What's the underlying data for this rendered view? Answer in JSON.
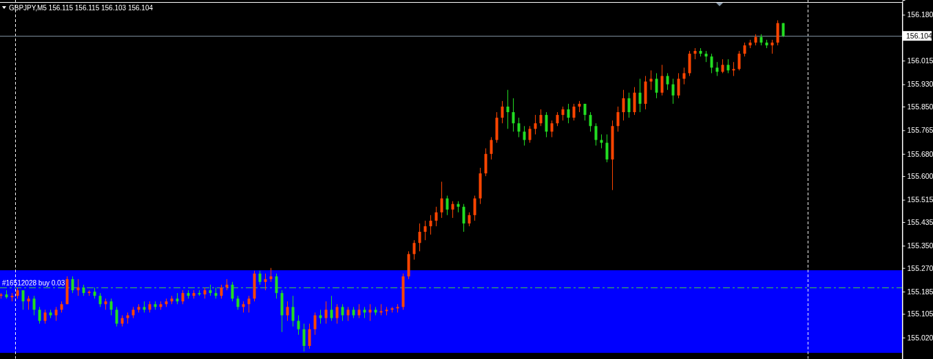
{
  "chart_data": {
    "type": "candlestick",
    "title": "GBPJPY,M5  156.115 156.115 156.103 156.104",
    "categories": [
      null,
      null,
      null,
      null,
      null,
      null,
      null,
      null,
      null,
      null,
      null,
      null,
      null,
      null,
      null,
      null,
      null,
      null,
      null,
      null,
      null,
      null,
      null,
      null,
      null,
      null,
      null,
      null,
      null,
      null,
      null,
      null,
      null,
      null,
      null,
      null,
      null,
      null,
      null,
      null,
      null,
      null,
      null,
      null,
      null,
      null,
      null,
      null,
      null,
      null,
      null,
      null,
      null,
      null,
      null,
      null,
      null,
      null,
      null,
      null,
      null,
      null,
      null,
      null,
      null,
      null,
      null,
      null,
      null,
      null,
      null,
      null,
      null,
      null,
      null,
      null,
      null,
      null,
      null,
      null,
      null,
      null,
      null,
      null,
      null,
      null,
      null,
      null,
      null,
      null,
      null,
      null,
      null,
      null,
      null,
      null,
      null,
      null,
      null,
      null,
      null,
      null,
      null,
      null,
      null,
      null,
      null,
      null,
      null,
      null,
      null,
      null,
      null,
      null,
      null,
      null,
      null,
      null,
      null,
      null,
      null,
      null,
      null,
      null,
      null,
      null,
      null,
      null,
      null,
      null,
      null,
      null,
      null,
      null,
      null,
      null,
      null,
      null,
      null,
      null,
      null,
      null,
      null,
      null,
      null,
      null,
      null,
      null,
      null,
      null,
      null,
      null,
      null,
      null,
      null,
      null,
      null,
      null,
      null,
      null,
      null,
      null,
      null,
      null
    ],
    "ohlc": [
      [
        155.17,
        155.18,
        155.16,
        155.175
      ],
      [
        155.175,
        155.19,
        155.16,
        155.165
      ],
      [
        155.165,
        155.18,
        155.15,
        155.17
      ],
      [
        155.17,
        155.2,
        155.16,
        155.19
      ],
      [
        155.19,
        155.19,
        155.12,
        155.15
      ],
      [
        155.15,
        155.17,
        155.12,
        155.16
      ],
      [
        155.16,
        155.17,
        155.1,
        155.12
      ],
      [
        155.12,
        155.13,
        155.07,
        155.08
      ],
      [
        155.08,
        155.12,
        155.07,
        155.11
      ],
      [
        155.11,
        155.12,
        155.09,
        155.1
      ],
      [
        155.1,
        155.13,
        155.08,
        155.12
      ],
      [
        155.12,
        155.15,
        155.11,
        155.14
      ],
      [
        155.14,
        155.24,
        155.14,
        155.23
      ],
      [
        155.23,
        155.24,
        155.18,
        155.19
      ],
      [
        155.19,
        155.23,
        155.17,
        155.2
      ],
      [
        155.2,
        155.21,
        155.17,
        155.18
      ],
      [
        155.18,
        155.19,
        155.17,
        155.185
      ],
      [
        155.185,
        155.2,
        155.16,
        155.17
      ],
      [
        155.17,
        155.18,
        155.13,
        155.14
      ],
      [
        155.14,
        155.16,
        155.12,
        155.15
      ],
      [
        155.15,
        155.16,
        155.1,
        155.12
      ],
      [
        155.12,
        155.13,
        155.06,
        155.07
      ],
      [
        155.07,
        155.1,
        155.06,
        155.09
      ],
      [
        155.09,
        155.11,
        155.07,
        155.1
      ],
      [
        155.1,
        155.13,
        155.09,
        155.12
      ],
      [
        155.12,
        155.14,
        155.11,
        155.13
      ],
      [
        155.13,
        155.15,
        155.11,
        155.12
      ],
      [
        155.12,
        155.15,
        155.11,
        155.14
      ],
      [
        155.14,
        155.15,
        155.12,
        155.13
      ],
      [
        155.13,
        155.15,
        155.12,
        155.14
      ],
      [
        155.14,
        155.16,
        155.13,
        155.15
      ],
      [
        155.15,
        155.17,
        155.14,
        155.16
      ],
      [
        155.16,
        155.18,
        155.14,
        155.15
      ],
      [
        155.15,
        155.19,
        155.14,
        155.18
      ],
      [
        155.18,
        155.19,
        155.16,
        155.17
      ],
      [
        155.17,
        155.19,
        155.16,
        155.18
      ],
      [
        155.18,
        155.19,
        155.17,
        155.175
      ],
      [
        155.175,
        155.2,
        155.16,
        155.19
      ],
      [
        155.19,
        155.21,
        155.17,
        155.18
      ],
      [
        155.18,
        155.2,
        155.16,
        155.17
      ],
      [
        155.17,
        155.21,
        155.16,
        155.2
      ],
      [
        155.2,
        155.23,
        155.19,
        155.21
      ],
      [
        155.21,
        155.22,
        155.15,
        155.16
      ],
      [
        155.16,
        155.17,
        155.12,
        155.13
      ],
      [
        155.13,
        155.15,
        155.11,
        155.14
      ],
      [
        155.14,
        155.17,
        155.11,
        155.16
      ],
      [
        155.16,
        155.26,
        155.15,
        155.25
      ],
      [
        155.25,
        155.26,
        155.21,
        155.22
      ],
      [
        155.22,
        155.25,
        155.19,
        155.23
      ],
      [
        155.23,
        155.27,
        155.22,
        155.24
      ],
      [
        155.24,
        155.25,
        155.16,
        155.18
      ],
      [
        155.18,
        155.19,
        155.04,
        155.1
      ],
      [
        155.1,
        155.15,
        155.08,
        155.13
      ],
      [
        155.13,
        155.17,
        155.06,
        155.08
      ],
      [
        155.08,
        155.1,
        155.03,
        155.05
      ],
      [
        155.05,
        155.07,
        154.97,
        154.99
      ],
      [
        154.99,
        155.07,
        154.98,
        155.05
      ],
      [
        155.05,
        155.11,
        155.03,
        155.1
      ],
      [
        155.1,
        155.12,
        155.07,
        155.09
      ],
      [
        155.09,
        155.15,
        155.07,
        155.12
      ],
      [
        155.12,
        155.17,
        155.08,
        155.09
      ],
      [
        155.09,
        155.14,
        155.07,
        155.13
      ],
      [
        155.13,
        155.14,
        155.08,
        155.1
      ],
      [
        155.1,
        155.13,
        155.08,
        155.12
      ],
      [
        155.12,
        155.13,
        155.09,
        155.1
      ],
      [
        155.1,
        155.14,
        155.09,
        155.12
      ],
      [
        155.12,
        155.13,
        155.09,
        155.11
      ],
      [
        155.11,
        155.14,
        155.08,
        155.12
      ],
      [
        155.12,
        155.13,
        155.1,
        155.11
      ],
      [
        155.11,
        155.14,
        155.1,
        155.115
      ],
      [
        155.115,
        155.13,
        155.1,
        155.12
      ],
      [
        155.12,
        155.13,
        155.11,
        155.125
      ],
      [
        155.125,
        155.14,
        155.11,
        155.13
      ],
      [
        155.13,
        155.25,
        155.12,
        155.24
      ],
      [
        155.24,
        155.33,
        155.23,
        155.32
      ],
      [
        155.32,
        155.37,
        155.3,
        155.36
      ],
      [
        155.36,
        155.43,
        155.33,
        155.4
      ],
      [
        155.4,
        155.44,
        155.37,
        155.42
      ],
      [
        155.42,
        155.46,
        155.39,
        155.44
      ],
      [
        155.44,
        155.49,
        155.42,
        155.47
      ],
      [
        155.47,
        155.58,
        155.45,
        155.52
      ],
      [
        155.52,
        155.53,
        155.46,
        155.48
      ],
      [
        155.48,
        155.51,
        155.45,
        155.5
      ],
      [
        155.5,
        155.51,
        155.47,
        155.49
      ],
      [
        155.49,
        155.5,
        155.4,
        155.43
      ],
      [
        155.43,
        155.47,
        155.42,
        155.46
      ],
      [
        155.46,
        155.53,
        155.44,
        155.52
      ],
      [
        155.52,
        155.63,
        155.5,
        155.61
      ],
      [
        155.61,
        155.7,
        155.6,
        155.68
      ],
      [
        155.68,
        155.74,
        155.66,
        155.73
      ],
      [
        155.73,
        155.83,
        155.72,
        155.81
      ],
      [
        155.81,
        155.87,
        155.79,
        155.85
      ],
      [
        155.85,
        155.91,
        155.77,
        155.83
      ],
      [
        155.83,
        155.88,
        155.76,
        155.79
      ],
      [
        155.79,
        155.81,
        155.74,
        155.76
      ],
      [
        155.76,
        155.78,
        155.71,
        155.73
      ],
      [
        155.73,
        155.78,
        155.72,
        155.77
      ],
      [
        155.77,
        155.82,
        155.75,
        155.79
      ],
      [
        155.79,
        155.84,
        155.78,
        155.82
      ],
      [
        155.82,
        155.83,
        155.74,
        155.76
      ],
      [
        155.76,
        155.8,
        155.74,
        155.79
      ],
      [
        155.79,
        155.83,
        155.78,
        155.82
      ],
      [
        155.82,
        155.85,
        155.8,
        155.84
      ],
      [
        155.84,
        155.86,
        155.79,
        155.81
      ],
      [
        155.81,
        155.86,
        155.8,
        155.85
      ],
      [
        155.85,
        155.87,
        155.83,
        155.86
      ],
      [
        155.86,
        155.86,
        155.8,
        155.82
      ],
      [
        155.82,
        155.83,
        155.76,
        155.78
      ],
      [
        155.78,
        155.79,
        155.71,
        155.73
      ],
      [
        155.73,
        155.75,
        155.7,
        155.72
      ],
      [
        155.72,
        155.75,
        155.65,
        155.66
      ],
      [
        155.66,
        155.8,
        155.55,
        155.78
      ],
      [
        155.78,
        155.85,
        155.76,
        155.83
      ],
      [
        155.83,
        155.91,
        155.8,
        155.88
      ],
      [
        155.88,
        155.9,
        155.81,
        155.83
      ],
      [
        155.83,
        155.92,
        155.82,
        155.9
      ],
      [
        155.9,
        155.95,
        155.83,
        155.86
      ],
      [
        155.86,
        155.96,
        155.84,
        155.94
      ],
      [
        155.94,
        155.98,
        155.91,
        155.95
      ],
      [
        155.95,
        155.97,
        155.88,
        155.9
      ],
      [
        155.9,
        156.0,
        155.89,
        155.96
      ],
      [
        155.96,
        155.97,
        155.91,
        155.93
      ],
      [
        155.93,
        155.95,
        155.86,
        155.89
      ],
      [
        155.89,
        155.97,
        155.88,
        155.95
      ],
      [
        155.95,
        155.99,
        155.93,
        155.97
      ],
      [
        155.97,
        156.05,
        155.96,
        156.04
      ],
      [
        156.04,
        156.06,
        156.02,
        156.05
      ],
      [
        156.05,
        156.06,
        156.03,
        156.04
      ],
      [
        156.04,
        156.05,
        156.01,
        156.03
      ],
      [
        156.03,
        156.04,
        155.97,
        155.99
      ],
      [
        155.99,
        156.01,
        155.96,
        155.975
      ],
      [
        155.975,
        156.02,
        155.97,
        156.0
      ],
      [
        156.0,
        156.02,
        155.97,
        155.98
      ],
      [
        155.98,
        156.01,
        155.96,
        155.985
      ],
      [
        155.985,
        156.05,
        155.98,
        156.04
      ],
      [
        156.04,
        156.08,
        156.03,
        156.07
      ],
      [
        156.07,
        156.09,
        156.06,
        156.08
      ],
      [
        156.08,
        156.11,
        156.07,
        156.1
      ],
      [
        156.1,
        156.11,
        156.07,
        156.08
      ],
      [
        156.08,
        156.09,
        156.06,
        156.07
      ],
      [
        156.07,
        156.09,
        156.04,
        156.08
      ],
      [
        156.08,
        156.16,
        156.07,
        156.15
      ],
      [
        156.15,
        156.15,
        156.1,
        156.104
      ],
      null,
      null,
      null,
      null,
      null,
      null,
      null,
      null,
      null,
      null,
      null,
      null,
      null,
      null,
      null,
      null,
      null,
      null,
      null,
      null,
      null
    ],
    "colors": [
      "#ff4500",
      "#22dd22",
      "#ff4500",
      "#ff4500",
      "#22dd22",
      "#ff4500",
      "#22dd22",
      "#22dd22",
      "#ff4500",
      "#22dd22",
      "#ff4500",
      "#ff4500",
      "#ff4500",
      "#22dd22",
      "#ff4500",
      "#22dd22",
      "#ff4500",
      "#22dd22",
      "#22dd22",
      "#ff4500",
      "#22dd22",
      "#22dd22",
      "#ff4500",
      "#ff4500",
      "#ff4500",
      "#ff4500",
      "#22dd22",
      "#ff4500",
      "#22dd22",
      "#ff4500",
      "#ff4500",
      "#ff4500",
      "#22dd22",
      "#ff4500",
      "#22dd22",
      "#ff4500",
      "#22dd22",
      "#ff4500",
      "#22dd22",
      "#22dd22",
      "#ff4500",
      "#ff4500",
      "#22dd22",
      "#22dd22",
      "#ff4500",
      "#ff4500",
      "#ff4500",
      "#22dd22",
      "#ff4500",
      "#ff4500",
      "#22dd22",
      "#22dd22",
      "#ff4500",
      "#22dd22",
      "#22dd22",
      "#22dd22",
      "#ff4500",
      "#ff4500",
      "#22dd22",
      "#ff4500",
      "#22dd22",
      "#ff4500",
      "#22dd22",
      "#ff4500",
      "#22dd22",
      "#ff4500",
      "#22dd22",
      "#ff4500",
      "#22dd22",
      "#ff4500",
      "#ff4500",
      "#ff4500",
      "#ff4500",
      "#ff4500",
      "#ff4500",
      "#ff4500",
      "#ff4500",
      "#ff4500",
      "#ff4500",
      "#ff4500",
      "#ff4500",
      "#22dd22",
      "#ff4500",
      "#22dd22",
      "#22dd22",
      "#ff4500",
      "#ff4500",
      "#ff4500",
      "#ff4500",
      "#ff4500",
      "#ff4500",
      "#ff4500",
      "#22dd22",
      "#22dd22",
      "#22dd22",
      "#22dd22",
      "#ff4500",
      "#ff4500",
      "#ff4500",
      "#22dd22",
      "#ff4500",
      "#ff4500",
      "#ff4500",
      "#22dd22",
      "#ff4500",
      "#ff4500",
      "#22dd22",
      "#22dd22",
      "#22dd22",
      "#22dd22",
      "#22dd22",
      "#ff4500",
      "#ff4500",
      "#ff4500",
      "#22dd22",
      "#ff4500",
      "#22dd22",
      "#ff4500",
      "#ff4500",
      "#22dd22",
      "#ff4500",
      "#22dd22",
      "#22dd22",
      "#ff4500",
      "#ff4500",
      "#ff4500",
      "#ff4500",
      "#22dd22",
      "#22dd22",
      "#22dd22",
      "#22dd22",
      "#ff4500",
      "#22dd22",
      "#ff4500",
      "#ff4500",
      "#ff4500",
      "#ff4500",
      "#ff4500",
      "#22dd22",
      "#22dd22",
      "#ff4500",
      "#ff4500",
      "#22dd22",
      null,
      null,
      null,
      null,
      null,
      null,
      null,
      null,
      null,
      null,
      null,
      null,
      null,
      null,
      null,
      null,
      null,
      null,
      null,
      null,
      null
    ],
    "ylim": [
      154.943,
      156.233
    ],
    "yticks": [
      {
        "value": 156.18,
        "label": "156.180"
      },
      {
        "value": 156.015,
        "label": "156.015"
      },
      {
        "value": 155.93,
        "label": "155.930"
      },
      {
        "value": 155.85,
        "label": "155.850"
      },
      {
        "value": 155.765,
        "label": "155.765"
      },
      {
        "value": 155.68,
        "label": "155.680"
      },
      {
        "value": 155.6,
        "label": "155.600"
      },
      {
        "value": 155.515,
        "label": "155.515"
      },
      {
        "value": 155.435,
        "label": "155.435"
      },
      {
        "value": 155.35,
        "label": "155.350"
      },
      {
        "value": 155.27,
        "label": "155.270"
      },
      {
        "value": 155.185,
        "label": "155.185"
      },
      {
        "value": 155.105,
        "label": "155.105"
      },
      {
        "value": 155.02,
        "label": "155.020"
      }
    ],
    "tick_labels": "y",
    "grid": false,
    "bands": [
      {
        "axis": "y",
        "from": 154.965,
        "to": 155.262,
        "color": "#0000ff"
      }
    ],
    "ref_lines": [
      {
        "axis": "y",
        "value": 156.104,
        "label": "156.104",
        "color": "#8899aa",
        "line_style": "solid"
      },
      {
        "axis": "y",
        "value": 155.2,
        "label": "#16512028 buy 0.03",
        "color": "#44cc44",
        "line_style": "dashed"
      }
    ]
  }
}
